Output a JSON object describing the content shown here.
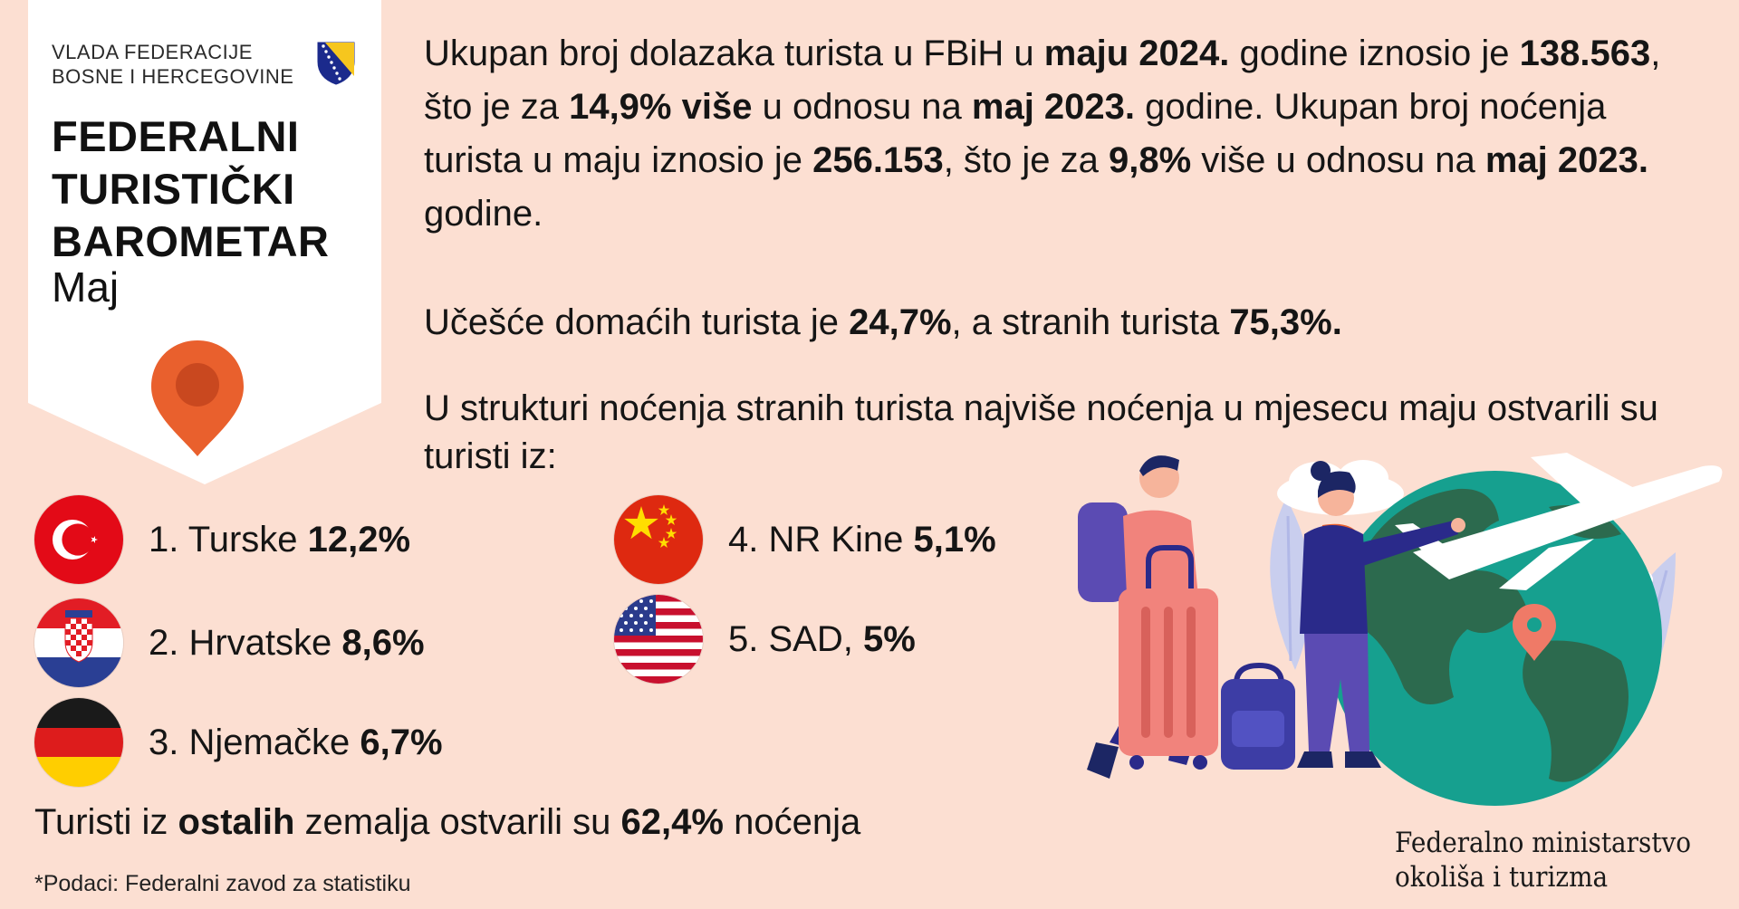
{
  "header": {
    "government_line1": "VLADA FEDERACIJE",
    "government_line2": "BOSNE I HERCEGOVINE",
    "title_line1": "FEDERALNI",
    "title_line2": "TURISTIČKI",
    "title_line3": "BAROMETAR",
    "month": "Maj"
  },
  "summary": {
    "s1": "Ukupan broj dolazaka turista u FBiH u ",
    "b1": "maju 2024.",
    "s2": " godine iznosio je ",
    "b2": "138.563",
    "s3": ", što je za ",
    "b3": "14,9% više",
    "s4": " u odnosu na ",
    "b4": "maj 2023.",
    "s5": " godine. Ukupan broj noćenja turista u maju iznosio je ",
    "b5": "256.153",
    "s6": ", što je za ",
    "b6": "9,8%",
    "s7": " više u odnosu na ",
    "b7": "maj 2023.",
    "s8": " godine."
  },
  "share": {
    "s1": "Učešće domaćih turista je ",
    "domestic": "24,7%",
    "s2": ", a stranih turista ",
    "foreign": "75,3%."
  },
  "structure_intro": "U strukturi noćenja stranih turista najviše noćenja u mjesecu maju ostvarili su turisti iz:",
  "countries": [
    {
      "label": "1. Turske ",
      "value": "12,2%",
      "flag": "turkey-flag-icon"
    },
    {
      "label": "2. Hrvatske ",
      "value": "8,6%",
      "flag": "croatia-flag-icon"
    },
    {
      "label": "3. Njemačke ",
      "value": "6,7%",
      "flag": "germany-flag-icon"
    },
    {
      "label": "4. NR Kine ",
      "value": "5,1%",
      "flag": "china-flag-icon"
    },
    {
      "label": "5. SAD, ",
      "value": "5%",
      "flag": "usa-flag-icon"
    }
  ],
  "others": {
    "s1": "Turisti iz ",
    "b1": "ostalih",
    "s2": " zemalja ostvarili su ",
    "b2": "62,4%",
    "s3": " noćenja"
  },
  "source": "*Podaci: Federalni zavod za statistiku",
  "ministry": {
    "line1": "Federalno ministarstvo",
    "line2": "okoliša i turizma"
  },
  "colors": {
    "background": "#fcdfd2",
    "pin": "#e9602d",
    "globe_ocean": "#16a08f",
    "globe_land": "#2c6a4e"
  }
}
